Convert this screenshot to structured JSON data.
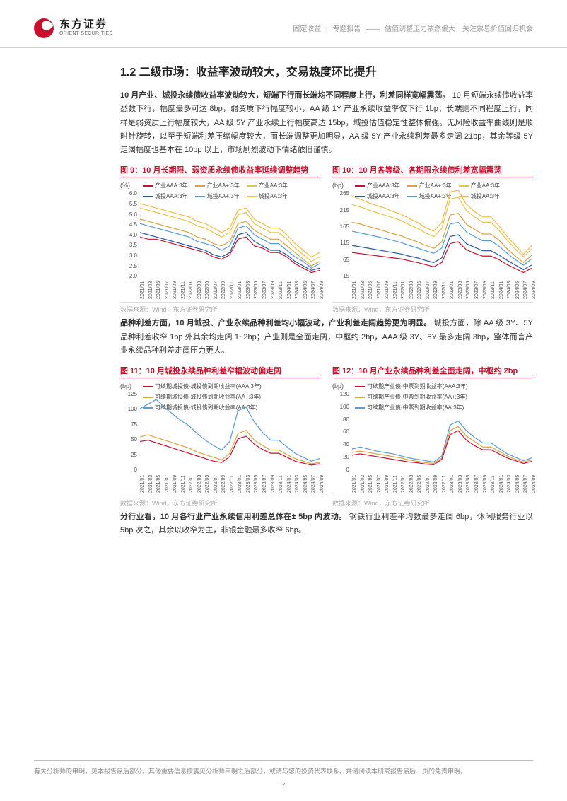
{
  "header": {
    "logo_cn": "东方证券",
    "logo_en": "ORIENT SECURITIES",
    "category": "固定收益",
    "report_type": "专题报告",
    "report_title": "估值调整压力依然偏大，关注票息价值回归机会"
  },
  "section_title": "1.2 二级市场：收益率波动较大，交易热度环比提升",
  "para1_bold": "10 月产业、城投永续债收益率波动较大，短端下行而长端均不同程度上行，利差同样宽幅震荡。",
  "para1_rest": "10 月短端永续债收益率悉数下行，幅度最多可达 8bp，弱资质下行幅度较小，AA 级 1Y 产业永续收益率仅下行 1bp；长端则不同程度上行，同样是弱资质上行幅度较大，AA 级 5Y 产业永续上行幅度高达 15bp，城投估值稳定性整体偏强。无风险收益率曲线则是顺时针旋转，以至于短端利差压缩幅度较大，而长端调整更加明显，AA 级 5Y 产业永续利差最多走阔 21bp，其余等级 5Y 走阔幅度也基本在 10bp 以上，市场剧烈波动下情绪依旧谨慎。",
  "para2": "品种利差方面，10 月城投、产业永续品种利差均小幅波动，产业利差走阔趋势更为明显。",
  "para2_rest": "城投方面，除 AA 级 3Y、5Y 品种利差收窄 1bp 外其余均走阔 1~2bp；产业则是全面走阔，中枢约 2bp，AAA 级 3Y、5Y 最多走阔 3bp，整体而言产业永续品种利差走阔压力更大。",
  "para3_bold": "分行业看，10 月各行业产业永续信用利差总体在± 5bp 内波动。",
  "para3_rest": "钢铁行业利差平均数最多走阔 6bp，休闲服务行业以 5bp 次之，其余以收窄为主，非银金融最多收窄 6bp。",
  "charts": {
    "c9": {
      "title": "图 9：10 月长期限、弱资质永续债收益率延续调整趋势",
      "y_unit": "(%)",
      "y_ticks": [
        "6.0",
        "5.5",
        "5.0",
        "4.5",
        "4.0",
        "3.5",
        "3.0",
        "2.5",
        "2.0"
      ],
      "ylim": [
        2.0,
        6.0
      ],
      "x_ticks": [
        "2021/01",
        "2021/03",
        "2021/05",
        "2021/07",
        "2021/09",
        "2021/11",
        "2022/01",
        "2022/03",
        "2022/05",
        "2022/07",
        "2022/09",
        "2022/11",
        "2023/01",
        "2023/03",
        "2023/05",
        "2023/07",
        "2023/09",
        "2023/11",
        "2024/01",
        "2024/03",
        "2024/05",
        "2024/07",
        "2024/09"
      ],
      "legend": [
        {
          "label": "产业AAA:3年",
          "color": "#c8102e"
        },
        {
          "label": "产业AA+:3年",
          "color": "#d9a441"
        },
        {
          "label": "产业AA:3年",
          "color": "#e8c547"
        },
        {
          "label": "城投AAA:3年",
          "color": "#2456a6"
        },
        {
          "label": "城投AA+:3年",
          "color": "#5b9bd5"
        },
        {
          "label": "城投AA:3年",
          "color": "#f4b942"
        }
      ],
      "series": [
        {
          "color": "#f4b942",
          "values": [
            5.4,
            5.3,
            5.2,
            5.1,
            5.0,
            4.9,
            4.8,
            4.6,
            4.5,
            4.3,
            4.1,
            4.3,
            5.1,
            5.2,
            4.7,
            4.5,
            4.3,
            4.3,
            4.0,
            3.6,
            3.3,
            3.0,
            3.2
          ]
        },
        {
          "color": "#e8c547",
          "values": [
            5.2,
            5.1,
            5.0,
            4.9,
            4.8,
            4.7,
            4.6,
            4.4,
            4.3,
            4.1,
            3.9,
            4.1,
            4.9,
            5.0,
            4.5,
            4.3,
            4.1,
            4.1,
            3.8,
            3.4,
            3.1,
            2.8,
            3.0
          ]
        },
        {
          "color": "#d9a441",
          "values": [
            4.7,
            4.6,
            4.5,
            4.4,
            4.3,
            4.2,
            4.1,
            3.9,
            3.8,
            3.6,
            3.5,
            3.7,
            4.5,
            4.6,
            4.2,
            4.0,
            3.8,
            3.8,
            3.5,
            3.2,
            2.9,
            2.6,
            2.8
          ]
        },
        {
          "color": "#5b9bd5",
          "values": [
            4.5,
            4.4,
            4.3,
            4.2,
            4.1,
            4.0,
            3.9,
            3.7,
            3.6,
            3.5,
            3.3,
            3.5,
            4.3,
            4.4,
            4.0,
            3.8,
            3.6,
            3.6,
            3.3,
            3.0,
            2.8,
            2.5,
            2.7
          ]
        },
        {
          "color": "#2456a6",
          "values": [
            4.1,
            4.0,
            3.9,
            3.8,
            3.7,
            3.6,
            3.5,
            3.4,
            3.3,
            3.1,
            3.0,
            3.2,
            4.0,
            4.1,
            3.7,
            3.5,
            3.3,
            3.3,
            3.1,
            2.8,
            2.6,
            2.4,
            2.5
          ]
        },
        {
          "color": "#c8102e",
          "values": [
            3.9,
            3.8,
            3.8,
            3.7,
            3.6,
            3.5,
            3.4,
            3.3,
            3.2,
            3.0,
            2.9,
            3.1,
            3.8,
            3.9,
            3.5,
            3.4,
            3.2,
            3.2,
            3.0,
            2.7,
            2.5,
            2.3,
            2.4
          ]
        }
      ]
    },
    "c10": {
      "title": "图 10：10 月各等级、各期限永续债利差宽幅震荡",
      "y_unit": "(bp)",
      "y_ticks": [
        "265",
        "215",
        "165",
        "115",
        "65",
        "15"
      ],
      "ylim": [
        15,
        265
      ],
      "x_ticks": [
        "2021/01",
        "2021/03",
        "2021/05",
        "2021/07",
        "2021/09",
        "2021/11",
        "2022/01",
        "2022/03",
        "2022/05",
        "2022/07",
        "2022/09",
        "2022/11",
        "2023/01",
        "2023/03",
        "2023/05",
        "2023/07",
        "2023/09",
        "2023/11",
        "2024/01",
        "2024/03",
        "2024/05",
        "2024/07",
        "2024/09"
      ],
      "legend": [
        {
          "label": "产业AAA:3年",
          "color": "#c8102e"
        },
        {
          "label": "产业AA+:3年",
          "color": "#d9a441"
        },
        {
          "label": "产业AA:3年",
          "color": "#e8c547"
        },
        {
          "label": "城投AAA:3年",
          "color": "#2456a6"
        },
        {
          "label": "城投AA+:3年",
          "color": "#5b9bd5"
        },
        {
          "label": "城投AA:3年",
          "color": "#f4b942"
        }
      ],
      "series": [
        {
          "color": "#f4b942",
          "values": [
            248,
            240,
            230,
            222,
            215,
            205,
            198,
            185,
            175,
            160,
            150,
            175,
            260,
            265,
            225,
            205,
            190,
            190,
            165,
            135,
            110,
            85,
            110
          ]
        },
        {
          "color": "#e8c547",
          "values": [
            225,
            218,
            210,
            202,
            195,
            188,
            180,
            168,
            158,
            145,
            135,
            158,
            240,
            245,
            208,
            190,
            175,
            175,
            152,
            125,
            100,
            78,
            100
          ]
        },
        {
          "color": "#d9a441",
          "values": [
            175,
            170,
            163,
            157,
            150,
            143,
            137,
            128,
            120,
            110,
            102,
            120,
            195,
            200,
            170,
            155,
            142,
            142,
            125,
            100,
            80,
            62,
            82
          ]
        },
        {
          "color": "#5b9bd5",
          "values": [
            150,
            145,
            140,
            135,
            130,
            124,
            118,
            110,
            103,
            95,
            88,
            103,
            170,
            175,
            148,
            135,
            123,
            123,
            108,
            88,
            70,
            55,
            72
          ]
        },
        {
          "color": "#2456a6",
          "values": [
            110,
            106,
            102,
            98,
            94,
            90,
            86,
            80,
            75,
            68,
            62,
            75,
            135,
            140,
            115,
            105,
            95,
            95,
            83,
            68,
            55,
            42,
            55
          ]
        },
        {
          "color": "#c8102e",
          "values": [
            90,
            87,
            84,
            81,
            78,
            75,
            72,
            67,
            62,
            56,
            50,
            62,
            115,
            120,
            98,
            88,
            80,
            80,
            70,
            56,
            45,
            34,
            46
          ]
        }
      ]
    },
    "c11": {
      "title": "图 11：10 月城投永续品种利差窄幅波动偏走阔",
      "y_unit": "(bp)",
      "y_ticks": [
        "125",
        "100",
        "75",
        "50",
        "25",
        "0"
      ],
      "ylim": [
        0,
        125
      ],
      "x_ticks": [
        "2021/01",
        "2021/03",
        "2021/05",
        "2021/07",
        "2021/09",
        "2021/11",
        "2022/01",
        "2022/03",
        "2022/05",
        "2022/07",
        "2022/09",
        "2022/11",
        "2023/01",
        "2023/03",
        "2023/05",
        "2023/07",
        "2023/09",
        "2023/11",
        "2024/01",
        "2024/03",
        "2024/05",
        "2024/07",
        "2024/09"
      ],
      "legend": [
        {
          "label": "可续期城投债-城投债到期收益率(AAA:3年)",
          "color": "#c8102e"
        },
        {
          "label": "可续期城投债-城投债到期收益率(AA+:3年)",
          "color": "#d9a441"
        },
        {
          "label": "可续期城投债-城投债到期收益率(AA:3年)",
          "color": "#5b9bd5"
        }
      ],
      "series": [
        {
          "color": "#5b9bd5",
          "values": [
            98,
            105,
            112,
            100,
            90,
            80,
            72,
            60,
            50,
            42,
            35,
            48,
            95,
            100,
            78,
            62,
            50,
            50,
            40,
            30,
            24,
            18,
            22
          ]
        },
        {
          "color": "#d9a441",
          "values": [
            55,
            58,
            54,
            50,
            46,
            42,
            38,
            32,
            28,
            24,
            20,
            30,
            60,
            65,
            50,
            42,
            35,
            35,
            28,
            22,
            18,
            14,
            16
          ]
        },
        {
          "color": "#c8102e",
          "values": [
            48,
            50,
            46,
            42,
            38,
            34,
            30,
            26,
            22,
            18,
            16,
            25,
            52,
            56,
            44,
            36,
            30,
            30,
            24,
            18,
            15,
            12,
            14
          ]
        }
      ]
    },
    "c12": {
      "title": "图 12：10 月产业永续品种利差全面走阔，中枢约 2bp",
      "y_unit": "(bp)",
      "y_ticks": [
        "120",
        "100",
        "80",
        "60",
        "40",
        "20",
        "0"
      ],
      "ylim": [
        0,
        120
      ],
      "x_ticks": [
        "2021/01",
        "2021/03",
        "2021/05",
        "2021/07",
        "2021/09",
        "2021/11",
        "2022/01",
        "2022/03",
        "2022/05",
        "2022/07",
        "2022/09",
        "2022/11",
        "2023/01",
        "2023/03",
        "2023/05",
        "2023/07",
        "2023/09",
        "2023/11",
        "2024/01",
        "2024/03",
        "2024/05",
        "2024/07",
        "2024/09"
      ],
      "legend": [
        {
          "label": "可续期产业债-中票到期收益率(AAA:3年)",
          "color": "#c8102e"
        },
        {
          "label": "可续期产业债-中票到期收益率(AA+:3年)",
          "color": "#d9a441"
        },
        {
          "label": "可续期产业债-中票到期收益率(AA:3年)",
          "color": "#5b9bd5"
        }
      ],
      "series": [
        {
          "color": "#5b9bd5",
          "values": [
            35,
            38,
            35,
            32,
            30,
            28,
            25,
            22,
            20,
            18,
            16,
            25,
            70,
            76,
            62,
            52,
            44,
            44,
            36,
            28,
            23,
            18,
            22
          ]
        },
        {
          "color": "#d9a441",
          "values": [
            30,
            32,
            30,
            28,
            26,
            24,
            22,
            19,
            17,
            15,
            14,
            22,
            62,
            68,
            54,
            46,
            38,
            38,
            32,
            25,
            20,
            16,
            19
          ]
        },
        {
          "color": "#c8102e",
          "values": [
            26,
            28,
            26,
            24,
            22,
            20,
            18,
            16,
            15,
            13,
            12,
            20,
            56,
            62,
            48,
            40,
            34,
            34,
            28,
            22,
            18,
            14,
            17
          ]
        }
      ]
    }
  },
  "source": "数据来源：Wind，东方证券研究所",
  "footer": "有关分析师的申明，见本报告最后部分。其他重要信息披露见分析师申明之后部分，或请与您的投资代表联系。并请阅读本研究报告最后一页的免责申明。",
  "page_number": "7",
  "colors": {
    "accent": "#c8102e",
    "text": "#333333",
    "muted": "#999999",
    "border": "#d0d0d0"
  }
}
